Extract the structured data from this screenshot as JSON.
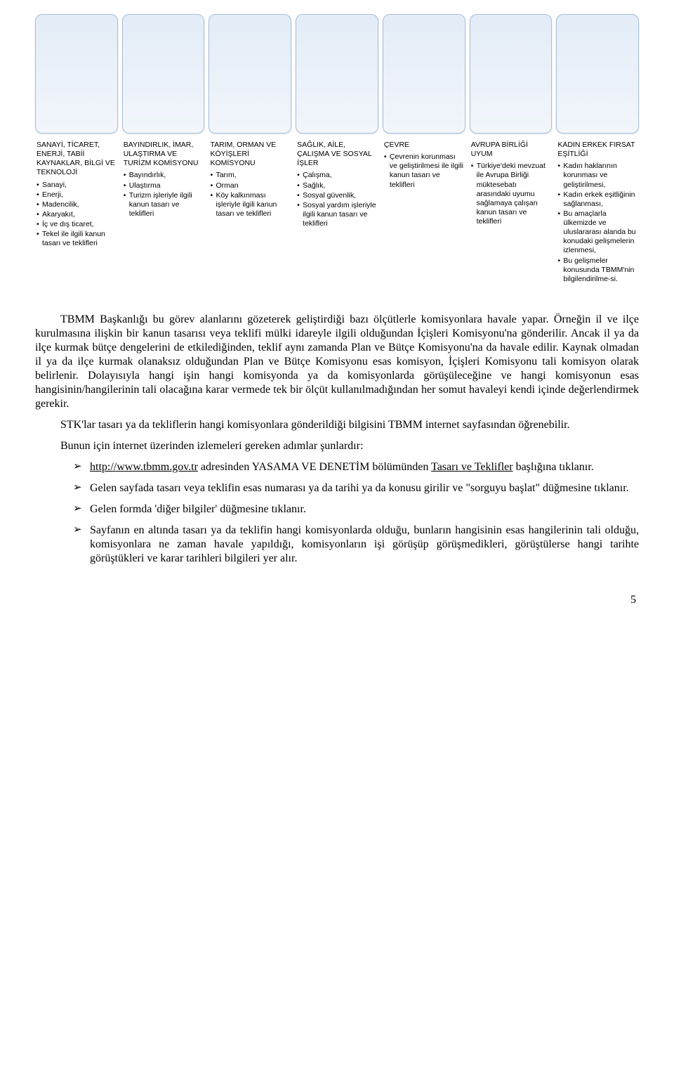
{
  "columns": [
    {
      "title": "SANAYİ, TİCARET, ENERJİ, TABİİ KAYNAKLAR, BİLGİ VE TEKNOLOJİ",
      "items": [
        "Sanayi,",
        "Enerji,",
        "Madencilik,",
        "Akaryakıt,",
        "İç ve dış ticaret,",
        "Tekel ile ilgili kanun tasarı ve teklifleri"
      ]
    },
    {
      "title": "BAYINDIRLIK, İMAR, ULAŞTIRMA VE TURİZM KOMİSYONU",
      "items": [
        "Bayındırlık,",
        "Ulaştırma",
        "Turizm işleriyle ilgili kanun tasarı ve teklifleri"
      ]
    },
    {
      "title": "TARIM, ORMAN VE KÖYİŞLERİ KOMİSYONU",
      "items": [
        "Tarım,",
        "Orman",
        "Köy kalkınması işleriyle ilgili kanun tasarı ve teklifleri"
      ]
    },
    {
      "title": "SAĞLIK, AİLE, ÇALIŞMA VE SOSYAL İŞLER",
      "items": [
        "Çalışma,",
        "Sağlık,",
        "Sosyal güvenlik,",
        "Sosyal yardım işleriyle ilgili kanun tasarı ve teklifleri"
      ]
    },
    {
      "title": "ÇEVRE",
      "items": [
        "Çevrenin korunması ve geliştirilmesi ile ilgili kanun tasarı ve teklifleri"
      ]
    },
    {
      "title": "AVRUPA BİRLİĞİ UYUM",
      "items": [
        "Türkiye'deki mevzuat ile Avrupa Birliği müktesebatı arasındaki uyumu sağlamaya çalışan kanun tasarı ve teklifleri"
      ]
    },
    {
      "title": "KADIN ERKEK FIRSAT EŞİTLİĞİ",
      "items": [
        "Kadın haklarının korunması ve geliştirilmesi,",
        "Kadın erkek eşitliğinin sağlanması,",
        "Bu amaçlarla ülkemizde ve uluslararası alanda bu konudaki gelişmelerin izlenmesi,",
        "Bu gelişmeler konusunda TBMM'nin bilgilendirilme-si."
      ]
    }
  ],
  "paragraphs": {
    "p1": "TBMM Başkanlığı bu görev alanlarını gözeterek geliştirdiği bazı ölçütlerle komisyonlara havale yapar. Örneğin il ve ilçe kurulmasına ilişkin bir kanun tasarısı veya teklifi mülki idareyle ilgili olduğundan İçişleri Komisyonu'na gönderilir. Ancak il ya da ilçe kurmak bütçe dengelerini de etkilediğinden, teklif aynı zamanda Plan ve Bütçe Komisyonu'na da havale edilir. Kaynak olmadan il ya da ilçe kurmak olanaksız olduğundan Plan ve Bütçe Komisyonu esas komisyon, İçişleri Komisyonu tali komisyon olarak belirlenir. Dolayısıyla hangi işin hangi komisyonda ya da komisyonlarda görüşüleceğine ve hangi komisyonun esas hangisinin/hangilerinin tali olacağına karar vermede tek bir ölçüt kullanılmadığından her somut havaleyi kendi içinde değerlendirmek gerekir.",
    "p2": "STK'lar tasarı ya da tekliflerin hangi komisyonlara gönderildiği bilgisini TBMM internet sayfasından öğrenebilir.",
    "p3": "Bunun için internet üzerinden izlemeleri gereken adımlar şunlardır:"
  },
  "list": {
    "li1_link": "http://www.tbmm.gov.tr",
    "li1_mid": " adresinden YASAMA VE DENETİM bölümünden ",
    "li1_link2": "Tasarı ve Teklifler",
    "li1_tail": " başlığına tıklanır.",
    "li2": "Gelen sayfada tasarı veya teklifin esas numarası ya da tarihi ya da konusu girilir ve \"sorguyu başlat\" düğmesine tıklanır.",
    "li3": "Gelen formda 'diğer bilgiler' düğmesine tıklanır.",
    "li4": "Sayfanın en altında tasarı ya da teklifin hangi komisyonlarda olduğu, bunların hangisinin esas hangilerinin tali olduğu, komisyonlara ne zaman havale yapıldığı, komisyonların işi görüşüp görüşmedikleri, görüştülerse hangi tarihte görüştükleri ve karar tarihleri bilgileri yer alır."
  },
  "page_number": "5"
}
